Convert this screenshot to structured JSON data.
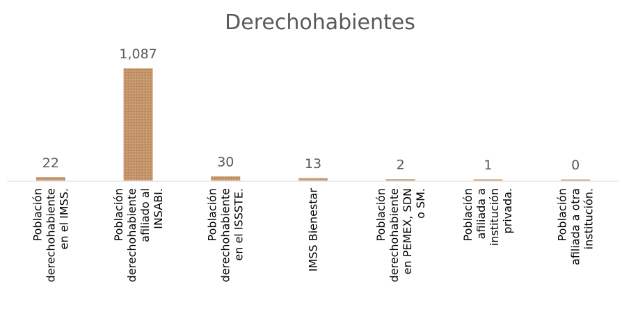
{
  "chart_data": {
    "type": "bar",
    "title": "Derechohabientes",
    "categories": [
      "Población\nderechohabiente\nen el IMSS.",
      "Población\nderechohabiente\nafiliado al\nINSABI.",
      "Población\nderechohabiente\nen el ISSSTE.",
      "IMSS Bienestar",
      "Población\nderechohabiente\nen PEMEX, SDN\no SM.",
      "Población\nafiliada a\ninstitución\nprivada.",
      "Población\nafiliada a otra\ninstitución."
    ],
    "values": [
      22,
      1087,
      30,
      13,
      2,
      1,
      0
    ],
    "value_labels": [
      "22",
      "1,087",
      "30",
      "13",
      "2",
      "1",
      "0"
    ],
    "color": "#c4956a",
    "ylim": [
      0,
      1100
    ]
  }
}
